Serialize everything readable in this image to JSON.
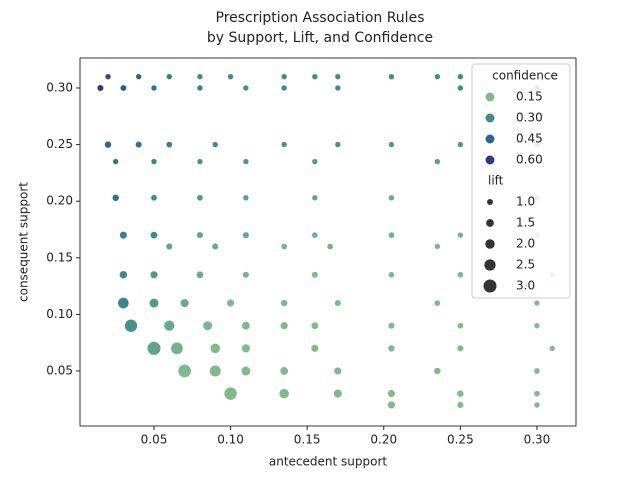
{
  "chart_data": {
    "type": "scatter",
    "title": "Prescription Association Rules",
    "subtitle": "by Support, Lift, and Confidence",
    "x_label": "antecedent support",
    "y_label": "consequent support",
    "xlim": [
      0.0017,
      0.3255
    ],
    "ylim": [
      0.0014,
      0.3265
    ],
    "xticks": [
      0.05,
      {
        "value": 0.1,
        "label": "0.10"
      },
      0.15,
      {
        "value": 0.2,
        "label": "0.20"
      },
      0.25,
      {
        "value": 0.3,
        "label": "0.30"
      }
    ],
    "yticks": [
      0.05,
      {
        "value": 0.1,
        "label": "0.10"
      },
      0.15,
      {
        "value": 0.2,
        "label": "0.20"
      },
      0.25,
      {
        "value": 0.3,
        "label": "0.30"
      }
    ],
    "hue_title": "confidence",
    "hue_legend": [
      {
        "value": 0.15,
        "label": "0.15",
        "color": "#80ba8a"
      },
      {
        "value": 0.3,
        "label": "0.30",
        "color": "#3f8b8b"
      },
      {
        "value": 0.45,
        "label": "0.45",
        "color": "#2a678a"
      },
      {
        "value": 0.6,
        "label": "0.60",
        "color": "#2b3c7a"
      }
    ],
    "size_title": "lift",
    "size_legend": [
      {
        "value": 1,
        "label": "1.0"
      },
      1.5,
      {
        "value": 2,
        "label": "2.0"
      },
      2.5,
      {
        "value": 3,
        "label": "3.0"
      }
    ],
    "legend_position": "upper right",
    "series": [
      {
        "x": [
          0.02,
          0.04,
          0.06,
          0.08,
          0.1,
          0.135,
          0.155,
          0.17,
          0.205,
          0.235,
          0.25,
          0.31,
          0.015,
          0.03,
          0.05,
          0.08,
          0.11,
          0.135,
          0.17,
          0.25,
          0.3,
          0.02,
          0.04,
          0.06,
          0.09,
          0.135,
          0.17,
          0.205,
          0.25,
          0.3,
          0.025,
          0.05,
          0.08,
          0.11,
          0.155,
          0.235,
          0.025,
          0.05,
          0.08,
          0.11,
          0.155,
          0.205,
          0.3,
          0.03,
          0.05,
          0.08,
          0.11,
          0.155,
          0.205,
          0.25,
          0.3,
          0.06,
          0.09,
          0.135,
          0.165,
          0.235,
          0.03,
          0.05,
          0.08,
          0.11,
          0.155,
          0.205,
          0.25,
          0.31,
          0.03,
          0.05,
          0.07,
          0.1,
          0.135,
          0.17,
          0.235,
          0.3,
          0.035,
          0.06,
          0.085,
          0.11,
          0.135,
          0.155,
          0.205,
          0.25,
          0.3,
          0.05,
          0.065,
          0.09,
          0.11,
          0.155,
          0.205,
          0.25,
          0.31,
          0.07,
          0.09,
          0.11,
          0.135,
          0.17,
          0.235,
          0.3,
          0.1,
          0.135,
          0.17,
          0.205,
          0.25,
          0.3,
          0.205,
          0.25,
          0.3
        ],
        "y": [
          0.31,
          0.31,
          0.31,
          0.31,
          0.31,
          0.31,
          0.31,
          0.31,
          0.31,
          0.31,
          0.31,
          0.31,
          0.3,
          0.3,
          0.3,
          0.3,
          0.3,
          0.3,
          0.3,
          0.3,
          0.3,
          0.25,
          0.25,
          0.25,
          0.25,
          0.25,
          0.25,
          0.25,
          0.25,
          0.25,
          0.235,
          0.235,
          0.235,
          0.235,
          0.235,
          0.235,
          0.203,
          0.203,
          0.203,
          0.203,
          0.203,
          0.203,
          0.203,
          0.17,
          0.17,
          0.17,
          0.17,
          0.17,
          0.17,
          0.17,
          0.17,
          0.16,
          0.16,
          0.16,
          0.16,
          0.16,
          0.135,
          0.135,
          0.135,
          0.135,
          0.135,
          0.135,
          0.135,
          0.135,
          0.11,
          0.11,
          0.11,
          0.11,
          0.11,
          0.11,
          0.11,
          0.11,
          0.09,
          0.09,
          0.09,
          0.09,
          0.09,
          0.09,
          0.09,
          0.09,
          0.09,
          0.07,
          0.07,
          0.07,
          0.07,
          0.07,
          0.07,
          0.07,
          0.07,
          0.05,
          0.05,
          0.05,
          0.05,
          0.05,
          0.05,
          0.05,
          0.03,
          0.03,
          0.03,
          0.03,
          0.03,
          0.03,
          0.02,
          0.02,
          0.02
        ],
        "confidence": [
          0.55,
          0.45,
          0.35,
          0.3,
          0.3,
          0.3,
          0.3,
          0.3,
          0.3,
          0.3,
          0.3,
          0.3,
          0.62,
          0.5,
          0.42,
          0.35,
          0.3,
          0.3,
          0.3,
          0.3,
          0.3,
          0.45,
          0.4,
          0.35,
          0.3,
          0.28,
          0.28,
          0.26,
          0.26,
          0.26,
          0.4,
          0.32,
          0.28,
          0.26,
          0.25,
          0.24,
          0.4,
          0.3,
          0.26,
          0.24,
          0.22,
          0.2,
          0.2,
          0.35,
          0.3,
          0.22,
          0.2,
          0.18,
          0.18,
          0.17,
          0.17,
          0.22,
          0.2,
          0.17,
          0.17,
          0.16,
          0.3,
          0.26,
          0.2,
          0.17,
          0.15,
          0.14,
          0.14,
          0.13,
          0.32,
          0.25,
          0.2,
          0.15,
          0.13,
          0.12,
          0.11,
          0.11,
          0.28,
          0.2,
          0.16,
          0.14,
          0.12,
          0.11,
          0.1,
          0.09,
          0.09,
          0.22,
          0.18,
          0.14,
          0.12,
          0.1,
          0.08,
          0.08,
          0.07,
          0.15,
          0.12,
          0.1,
          0.09,
          0.08,
          0.07,
          0.06,
          0.1,
          0.08,
          0.07,
          0.06,
          0.05,
          0.05,
          0.05,
          0.04,
          0.03
        ],
        "lift": [
          1.0,
          1.0,
          1.0,
          1.0,
          1.0,
          1.0,
          1.0,
          1.0,
          1.0,
          1.0,
          1.0,
          1.0,
          1.2,
          1.1,
          1.0,
          1.0,
          1.0,
          1.0,
          1.0,
          1.0,
          1.0,
          1.3,
          1.2,
          1.1,
          1.0,
          1.0,
          1.0,
          1.0,
          1.0,
          1.0,
          1.0,
          1.0,
          1.0,
          1.0,
          1.0,
          1.0,
          1.3,
          1.1,
          1.1,
          1.0,
          1.0,
          1.0,
          1.0,
          1.5,
          1.4,
          1.2,
          1.2,
          1.1,
          1.1,
          1.0,
          1.0,
          1.2,
          1.2,
          1.1,
          1.1,
          1.0,
          1.6,
          1.5,
          1.4,
          1.2,
          1.2,
          1.1,
          1.1,
          1.0,
          2.5,
          2.0,
          1.8,
          1.5,
          1.3,
          1.2,
          1.1,
          1.0,
          3.0,
          2.4,
          2.0,
          1.7,
          1.5,
          1.4,
          1.2,
          1.1,
          1.0,
          3.2,
          2.8,
          2.2,
          1.8,
          1.5,
          1.3,
          1.2,
          1.0,
          3.1,
          2.6,
          2.0,
          1.7,
          1.5,
          1.3,
          1.1,
          3.0,
          2.2,
          1.8,
          1.5,
          1.3,
          1.1,
          1.5,
          1.2,
          1.0
        ]
      }
    ]
  }
}
